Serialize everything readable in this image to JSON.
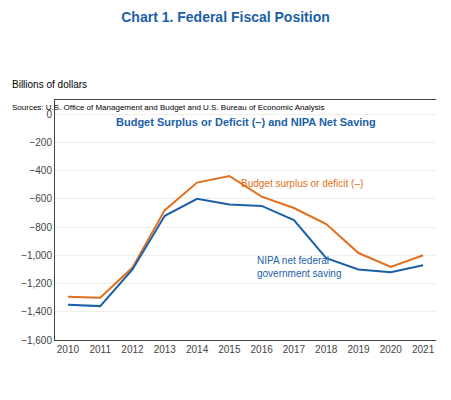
{
  "chart_data": {
    "type": "line",
    "title": "Chart 1. Federal Fiscal Position",
    "subtitle": "Budget Surplus or Deficit (–) and NIPA Net Saving",
    "ylabel": "Billions of dollars",
    "source": "Sources: U.S. Office of Management and Budget and U.S. Bureau of Economic Analysis",
    "title_color": "#1B5FA8",
    "subtitle_color": "#1B5FA8",
    "x": [
      2010,
      2011,
      2012,
      2013,
      2014,
      2015,
      2016,
      2017,
      2018,
      2019,
      2020,
      2021
    ],
    "series": [
      {
        "name": "Budget surplus or deficit (–)",
        "color": "#E07020",
        "values": [
          -1294,
          -1300,
          -1087,
          -680,
          -485,
          -438,
          -585,
          -665,
          -779,
          -984,
          -1083,
          -1000
        ]
      },
      {
        "name": "NIPA net federal\ngovernment saving",
        "color": "#1B5FA8",
        "values": [
          -1350,
          -1360,
          -1100,
          -720,
          -600,
          -640,
          -650,
          -750,
          -1020,
          -1100,
          -1120,
          -1070
        ]
      }
    ],
    "annotations": [
      {
        "text": "Budget surplus or deficit (–)",
        "x": 2015.3,
        "y": -490,
        "color": "#E07020"
      },
      {
        "text": "NIPA net federal\ngovernment saving",
        "x": 2015.8,
        "y": -1080,
        "color": "#1B5FA8"
      }
    ],
    "xlim": [
      2009.6,
      2021.4
    ],
    "xticks": [
      2010,
      2011,
      2012,
      2013,
      2014,
      2015,
      2016,
      2017,
      2018,
      2019,
      2020,
      2021
    ],
    "ylim": [
      -1600,
      100
    ],
    "yticks": [
      0,
      {
        "value": -200,
        "label": "−200"
      },
      {
        "value": -400,
        "label": "−400"
      },
      {
        "value": -600,
        "label": "−600"
      },
      {
        "value": -800,
        "label": "−800"
      },
      {
        "value": -1000,
        "label": "−1,000"
      },
      {
        "value": -1200,
        "label": "−1,200"
      },
      {
        "value": -1400,
        "label": "−1,400"
      },
      {
        "value": -1600,
        "label": "−1,600"
      }
    ],
    "grid": "y"
  }
}
